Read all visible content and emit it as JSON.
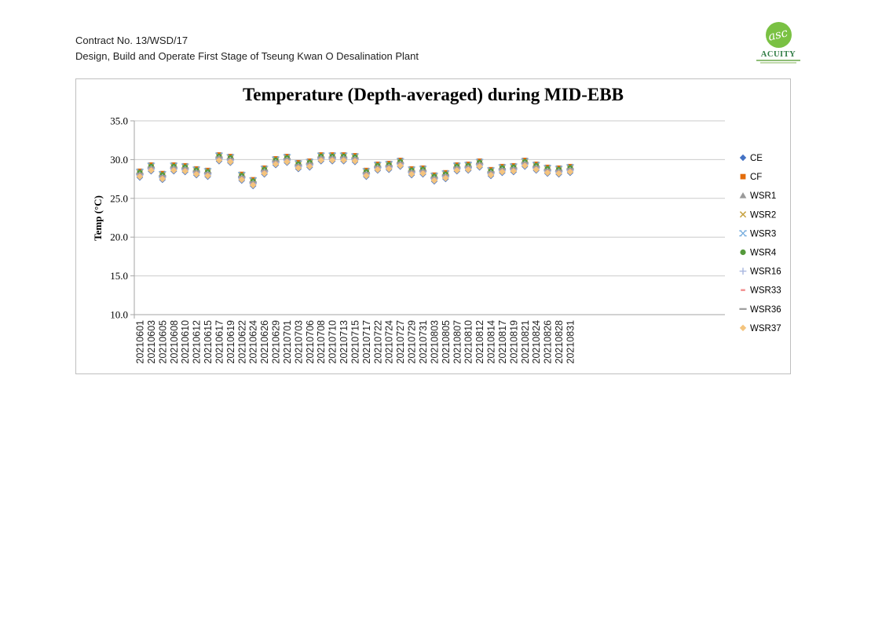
{
  "header": {
    "line1": "Contract No. 13/WSD/17",
    "line2": "Design, Build and Operate First Stage of Tseung Kwan O Desalination Plant"
  },
  "logo": {
    "monogram": "asc",
    "name": "ACUITY",
    "circle_color": "#7AC143",
    "name_color": "#2F7B44"
  },
  "chart_colors": {
    "gridline": "#CBCBCB",
    "axis": "#A6A6A6",
    "box_border": "#BFBFBF",
    "tick_label": "#000000",
    "x_label": "#1F1F1F"
  },
  "chart_data": {
    "type": "scatter",
    "title": "Temperature (Depth-averaged) during MID-EBB",
    "xlabel": "",
    "ylabel": "Temp (°C)",
    "ylim": [
      10.0,
      35.0
    ],
    "ytick_step": 5.0,
    "grid": "horizontal",
    "legend_position": "right",
    "categories": [
      "20210601",
      "20210603",
      "20210605",
      "20210608",
      "20210610",
      "20210612",
      "20210615",
      "20210617",
      "20210619",
      "20210622",
      "20210624",
      "20210626",
      "20210629",
      "20210701",
      "20210703",
      "20210706",
      "20210708",
      "20210710",
      "20210713",
      "20210715",
      "20210717",
      "20210722",
      "20210724",
      "20210727",
      "20210729",
      "20210731",
      "20210803",
      "20210805",
      "20210807",
      "20210810",
      "20210812",
      "20210814",
      "20210817",
      "20210819",
      "20210821",
      "20210824",
      "20210826",
      "20210828",
      "20210831"
    ],
    "series": [
      {
        "name": "CE",
        "marker": "diamond",
        "color": "#4472C4",
        "values": [
          27.7,
          28.5,
          27.4,
          28.5,
          28.4,
          28.0,
          27.8,
          29.8,
          29.6,
          27.3,
          26.6,
          28.1,
          29.3,
          29.6,
          28.8,
          29.0,
          29.8,
          29.8,
          29.8,
          29.7,
          27.8,
          28.6,
          28.7,
          29.1,
          28.0,
          28.1,
          27.2,
          27.5,
          28.5,
          28.6,
          29.0,
          27.9,
          28.3,
          28.4,
          29.1,
          28.6,
          28.2,
          28.1,
          28.3
        ]
      },
      {
        "name": "CF",
        "marker": "square",
        "color": "#E36C0A",
        "values": [
          28.5,
          29.3,
          28.2,
          29.3,
          29.2,
          28.8,
          28.6,
          30.6,
          30.4,
          28.1,
          27.4,
          28.9,
          30.1,
          30.4,
          29.6,
          29.8,
          30.6,
          30.6,
          30.6,
          30.5,
          28.6,
          29.4,
          29.5,
          29.9,
          28.8,
          28.9,
          28.0,
          28.3,
          29.3,
          29.4,
          29.8,
          28.7,
          29.1,
          29.2,
          29.9,
          29.4,
          29.0,
          28.9,
          29.1
        ]
      },
      {
        "name": "WSR1",
        "marker": "triangle",
        "color": "#9A9A9A",
        "values": [
          28.2,
          29.0,
          27.9,
          29.0,
          28.9,
          28.5,
          28.3,
          30.3,
          30.1,
          27.8,
          27.1,
          28.6,
          29.8,
          30.1,
          29.3,
          29.5,
          30.3,
          30.3,
          30.3,
          30.2,
          28.3,
          29.1,
          29.2,
          29.6,
          28.5,
          28.6,
          27.7,
          28.0,
          29.0,
          29.1,
          29.5,
          28.4,
          28.8,
          28.9,
          29.6,
          29.1,
          28.7,
          28.6,
          28.8
        ]
      },
      {
        "name": "WSR2",
        "marker": "x",
        "color": "#C6A13F",
        "values": [
          28.3,
          29.1,
          28.0,
          29.1,
          29.0,
          28.6,
          28.4,
          30.4,
          30.2,
          27.9,
          27.2,
          28.7,
          29.9,
          30.2,
          29.4,
          29.6,
          30.4,
          30.4,
          30.4,
          30.3,
          28.4,
          29.2,
          29.3,
          29.7,
          28.6,
          28.7,
          27.8,
          28.1,
          29.1,
          29.2,
          29.6,
          28.5,
          28.9,
          29.0,
          29.7,
          29.2,
          28.8,
          28.7,
          28.9
        ]
      },
      {
        "name": "WSR3",
        "marker": "x-serif",
        "color": "#6FA8DC",
        "values": [
          28.4,
          29.2,
          28.1,
          29.2,
          29.1,
          28.7,
          28.5,
          30.5,
          30.3,
          28.0,
          27.3,
          28.8,
          30.0,
          30.3,
          29.5,
          29.7,
          30.5,
          30.5,
          30.5,
          30.4,
          28.5,
          29.3,
          29.4,
          29.8,
          28.7,
          28.8,
          27.9,
          28.2,
          29.2,
          29.3,
          29.7,
          28.6,
          29.0,
          29.1,
          29.8,
          29.3,
          28.9,
          28.8,
          29.0
        ]
      },
      {
        "name": "WSR4",
        "marker": "circle",
        "color": "#55993B",
        "values": [
          28.3,
          29.1,
          28.0,
          29.1,
          29.0,
          28.6,
          28.4,
          30.4,
          30.2,
          27.9,
          27.2,
          28.7,
          29.9,
          30.2,
          29.4,
          29.6,
          30.4,
          30.4,
          30.4,
          30.3,
          28.4,
          29.2,
          29.3,
          29.7,
          28.6,
          28.7,
          27.8,
          28.1,
          29.1,
          29.2,
          29.6,
          28.5,
          28.9,
          29.0,
          29.7,
          29.2,
          28.8,
          28.7,
          28.9
        ]
      },
      {
        "name": "WSR16",
        "marker": "plus",
        "color": "#A8B6DF",
        "values": [
          28.0,
          28.8,
          27.7,
          28.8,
          28.7,
          28.3,
          28.1,
          30.1,
          29.9,
          27.6,
          26.9,
          28.4,
          29.6,
          29.9,
          29.1,
          29.3,
          30.1,
          30.1,
          30.1,
          30.0,
          28.1,
          28.9,
          29.0,
          29.4,
          28.3,
          28.4,
          27.5,
          27.8,
          28.8,
          28.9,
          29.3,
          28.2,
          28.6,
          28.7,
          29.4,
          28.9,
          28.5,
          28.4,
          28.6
        ]
      },
      {
        "name": "WSR33",
        "marker": "dash-short",
        "color": "#F28C8C",
        "values": [
          28.1,
          28.9,
          27.8,
          28.9,
          28.8,
          28.4,
          28.2,
          30.2,
          30.0,
          27.7,
          27.0,
          28.5,
          29.7,
          30.0,
          29.2,
          29.4,
          30.2,
          30.2,
          30.2,
          30.1,
          28.2,
          29.0,
          29.1,
          29.5,
          28.4,
          28.5,
          27.6,
          27.9,
          28.9,
          29.0,
          29.4,
          28.3,
          28.7,
          28.8,
          29.5,
          29.0,
          28.6,
          28.5,
          28.7
        ]
      },
      {
        "name": "WSR36",
        "marker": "dash",
        "color": "#9B9B9B",
        "values": [
          28.2,
          29.0,
          27.9,
          29.0,
          28.9,
          28.5,
          28.3,
          30.3,
          30.1,
          27.8,
          27.1,
          28.6,
          29.8,
          30.1,
          29.3,
          29.5,
          30.3,
          30.3,
          30.3,
          30.2,
          28.3,
          29.1,
          29.2,
          29.6,
          28.5,
          28.6,
          27.7,
          28.0,
          29.0,
          29.1,
          29.5,
          28.4,
          28.8,
          28.9,
          29.6,
          29.1,
          28.7,
          28.6,
          28.8
        ]
      },
      {
        "name": "WSR37",
        "marker": "diamond",
        "color": "#F4C47E",
        "values": [
          27.8,
          28.6,
          27.5,
          28.6,
          28.5,
          28.1,
          27.9,
          29.9,
          29.7,
          27.4,
          26.7,
          28.2,
          29.4,
          29.7,
          28.9,
          29.1,
          29.9,
          29.9,
          29.9,
          29.8,
          27.9,
          28.7,
          28.8,
          29.2,
          28.1,
          28.2,
          27.3,
          27.6,
          28.6,
          28.7,
          29.1,
          28.0,
          28.4,
          28.5,
          29.2,
          28.7,
          28.3,
          28.2,
          28.4
        ]
      }
    ]
  }
}
